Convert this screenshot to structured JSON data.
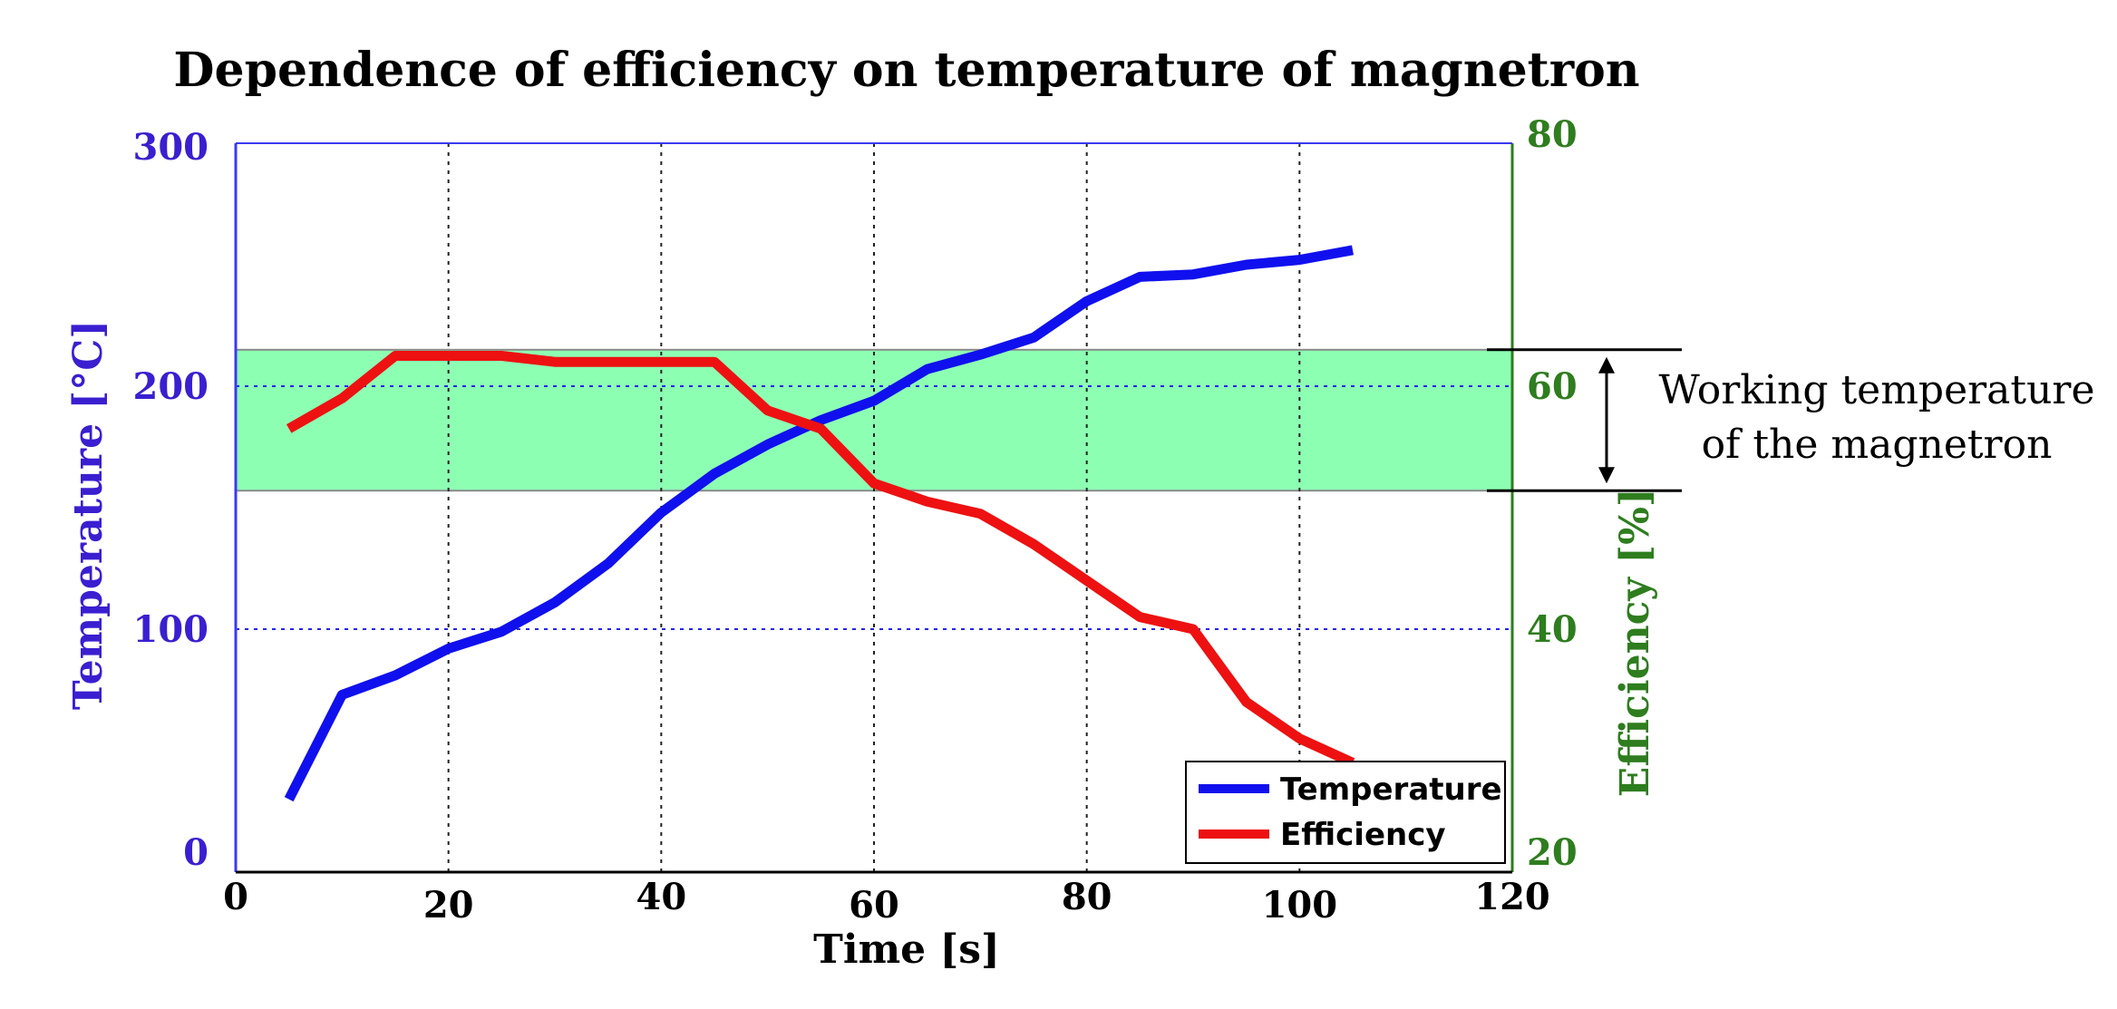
{
  "chart_data": {
    "type": "line",
    "title": "Dependence of efficiency on temperature of magnetron",
    "xlabel": "Time [s]",
    "ylabel_left": "Temperature [°C]",
    "ylabel_right": "Efficiency [%]",
    "xlim": [
      0,
      120
    ],
    "ylim_left": [
      0,
      300
    ],
    "ylim_right": [
      20,
      80
    ],
    "x_ticks": [
      "0",
      "20",
      "40",
      "60",
      "80",
      "100",
      "120"
    ],
    "y_left_ticks": [
      "0",
      "100",
      "200",
      "300"
    ],
    "y_right_ticks": [
      "20",
      "40",
      "60",
      "80"
    ],
    "grid": true,
    "colors": {
      "temperature": "#1010ee",
      "efficiency": "#ee1111",
      "left_axis": "#3a1fd0",
      "right_axis": "#2e7d1e",
      "band": "#8dffb3"
    },
    "working_band": {
      "label_line1": "Working temperature",
      "label_line2": "of the magnetron",
      "temperature_range": [
        157,
        215
      ]
    },
    "legend": {
      "position": "bottom-right",
      "entries": [
        "Temperature",
        "Efficiency"
      ]
    },
    "series": [
      {
        "name": "Temperature",
        "axis": "left",
        "x": [
          5,
          10,
          15,
          20,
          25,
          30,
          35,
          40,
          45,
          50,
          55,
          60,
          65,
          70,
          75,
          80,
          85,
          90,
          95,
          100,
          105
        ],
        "values": [
          30,
          73,
          81,
          92,
          99,
          111,
          127,
          148,
          164,
          176,
          186,
          194,
          207,
          213,
          220,
          235,
          245,
          246,
          250,
          252,
          256
        ]
      },
      {
        "name": "Efficiency",
        "axis": "right",
        "x": [
          5,
          10,
          15,
          20,
          25,
          30,
          35,
          40,
          45,
          50,
          55,
          60,
          65,
          70,
          75,
          80,
          85,
          90,
          95,
          100,
          105
        ],
        "values": [
          56.5,
          59,
          62.5,
          62.5,
          62.5,
          62,
          62,
          62,
          62,
          58,
          56.5,
          52,
          50.5,
          49.5,
          47,
          44,
          41,
          40,
          34,
          31,
          29
        ]
      }
    ]
  }
}
